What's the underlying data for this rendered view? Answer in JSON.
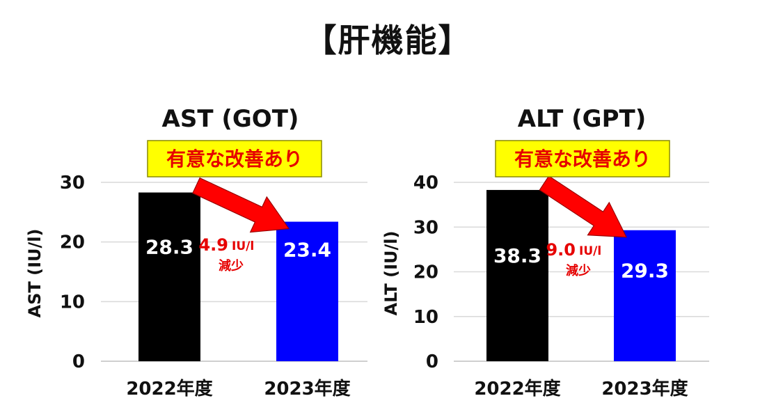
{
  "page": {
    "title": "【肝機能】"
  },
  "colors": {
    "bar_2022": "#000000",
    "bar_2023": "#0000ff",
    "accent_red": "#e60000",
    "badge_fill": "#ffff00",
    "grid": "#d9d9d9"
  },
  "chart_data": [
    {
      "type": "bar",
      "title": "AST (GOT)",
      "ylabel": "AST (IU/l)",
      "xlabel": "",
      "categories": [
        "2022年度",
        "2023年度"
      ],
      "values": [
        28.3,
        23.4
      ],
      "data_labels": [
        "28.3",
        "23.4"
      ],
      "ylim": [
        0,
        30
      ],
      "yticks": [
        0,
        10,
        20,
        30
      ],
      "grid": true,
      "badge": "有意な改善あり",
      "change_value": "4.9",
      "change_unit": "IU/l",
      "change_text": "減少"
    },
    {
      "type": "bar",
      "title": "ALT (GPT)",
      "ylabel": "ALT (IU/l)",
      "xlabel": "",
      "categories": [
        "2022年度",
        "2023年度"
      ],
      "values": [
        38.3,
        29.3
      ],
      "data_labels": [
        "38.3",
        "29.3"
      ],
      "ylim": [
        0,
        40
      ],
      "yticks": [
        0,
        10,
        20,
        30,
        40
      ],
      "grid": true,
      "badge": "有意な改善あり",
      "change_value": "9.0",
      "change_unit": "IU/l",
      "change_text": "減少"
    }
  ]
}
